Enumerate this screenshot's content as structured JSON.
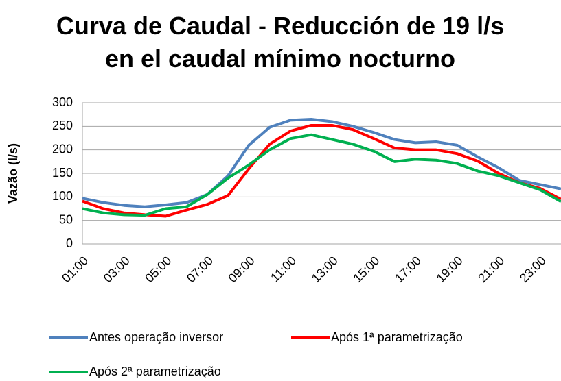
{
  "chart_data": {
    "type": "line",
    "title": "Curva de Caudal - Reducción de 19 l/s en el caudal mínimo nocturno",
    "y_label": "Vazão (l/s)",
    "categories": [
      "01:00",
      null,
      "03:00",
      null,
      "05:00",
      null,
      "07:00",
      null,
      "09:00",
      null,
      "11:00",
      null,
      "13:00",
      null,
      "15:00",
      null,
      "17:00",
      null,
      "19:00",
      null,
      "21:00",
      null,
      "23:00",
      null
    ],
    "series": [
      {
        "name": "Antes operação inversor",
        "color": "#4f81bd",
        "values": [
          97,
          88,
          82,
          79,
          83,
          88,
          105,
          145,
          210,
          248,
          263,
          265,
          260,
          250,
          237,
          222,
          215,
          217,
          210,
          185,
          162,
          135,
          126,
          117
        ]
      },
      {
        "name": "Após 1ª parametrização",
        "color": "#ff0000",
        "values": [
          91,
          75,
          66,
          62,
          59,
          72,
          84,
          103,
          160,
          212,
          240,
          252,
          252,
          243,
          224,
          204,
          200,
          200,
          192,
          176,
          150,
          130,
          118,
          95
        ]
      },
      {
        "name": "Após 2ª parametrização",
        "color": "#00b050",
        "values": [
          75,
          66,
          62,
          61,
          75,
          79,
          105,
          140,
          168,
          200,
          224,
          232,
          222,
          212,
          197,
          175,
          180,
          178,
          171,
          155,
          145,
          130,
          115,
          90
        ]
      }
    ],
    "ylim": [
      0,
      300
    ],
    "yticks": [
      0,
      50,
      100,
      150,
      200,
      250,
      300
    ],
    "grid": true,
    "legend": "bottom"
  }
}
